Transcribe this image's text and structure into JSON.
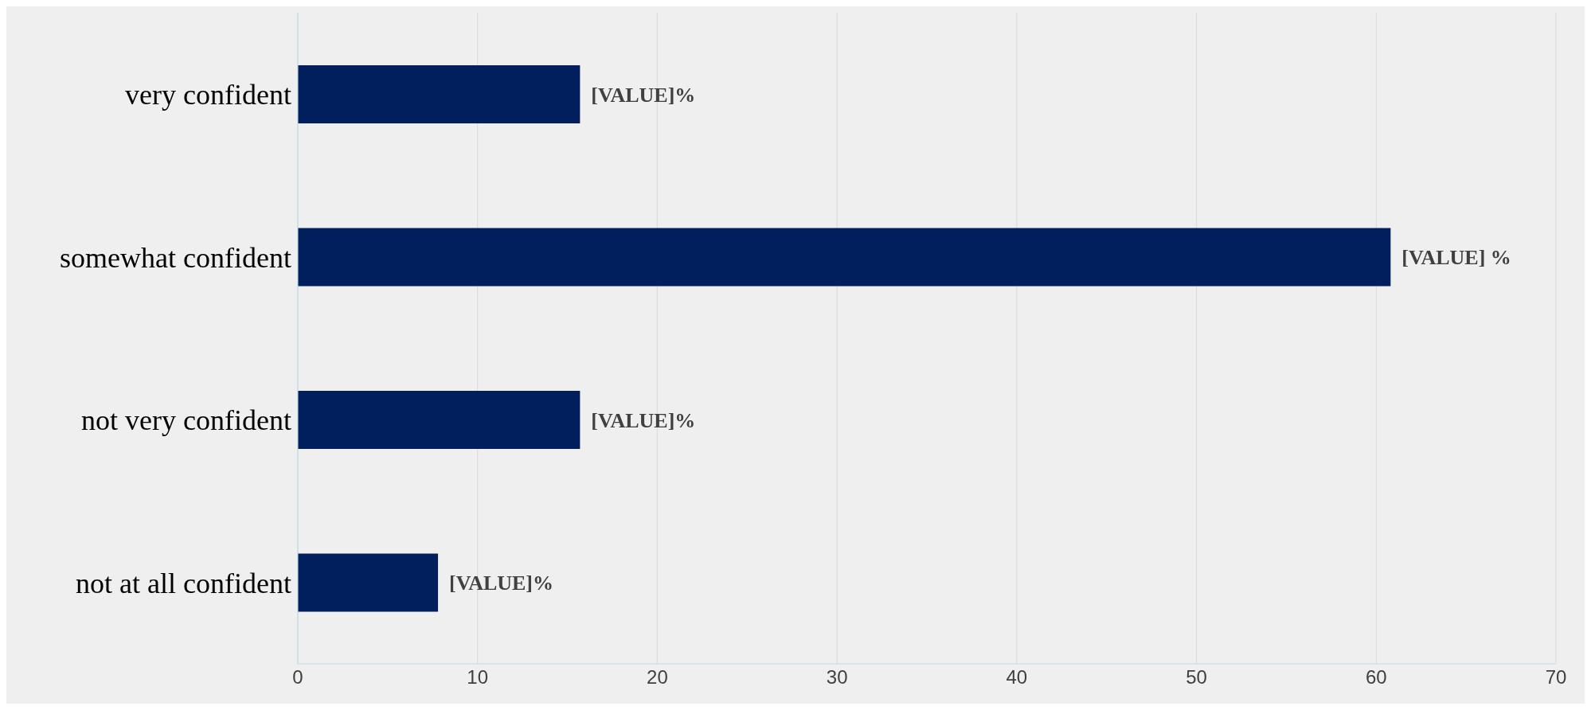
{
  "chart_data": {
    "type": "bar",
    "orientation": "horizontal",
    "categories": [
      "very confident",
      "somewhat confident",
      "not very confident",
      "not at all confident"
    ],
    "values": [
      15.7,
      60.8,
      15.7,
      7.8
    ],
    "color": "#001f5c",
    "value_labels": [
      "[VALUE]%",
      "[VALUE] %",
      "[VALUE]%",
      "[VALUE]%"
    ],
    "xlim": [
      0,
      70
    ],
    "xticks": [
      0,
      10,
      20,
      30,
      40,
      50,
      60,
      70
    ],
    "grid": "x"
  }
}
